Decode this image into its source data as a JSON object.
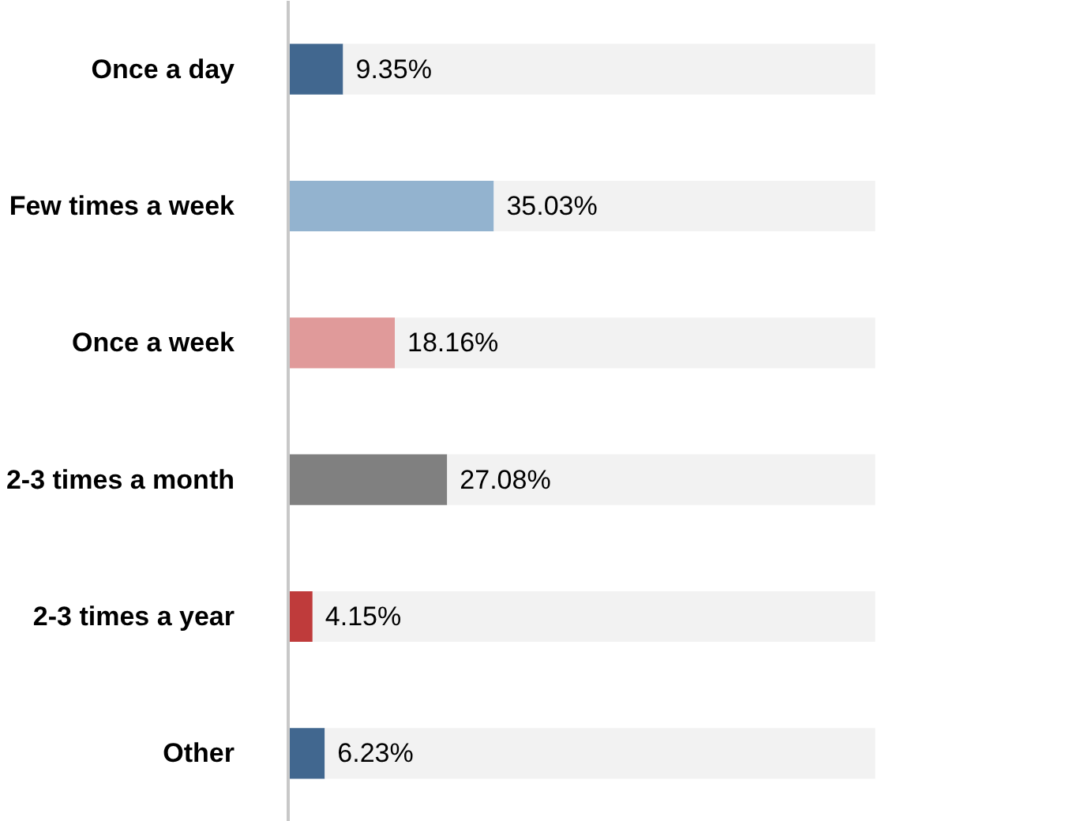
{
  "chart_data": {
    "type": "bar",
    "orientation": "horizontal",
    "stacked": true,
    "categories": [
      "Once a day",
      "Few times a week",
      "Once a week",
      "2-3 times a month",
      "2-3 times a year",
      "Other"
    ],
    "tick_labels": "y",
    "grid": false,
    "series": [
      {
        "colors": [
          "#41678f",
          "#93b3cf",
          "#e09a9a",
          "#808080",
          "#bf3b3b",
          "#41678f"
        ],
        "values": [
          9.35,
          35.03,
          18.16,
          27.08,
          4.15,
          6.23
        ],
        "value_labels": [
          "9.35%",
          "35.03%",
          "18.16%",
          "27.08%",
          "4.15%",
          "6.23%"
        ]
      },
      {
        "color": "#f2f2f2",
        "values": [
          90.65,
          64.97,
          81.84,
          72.92,
          95.85,
          93.77
        ]
      }
    ]
  }
}
